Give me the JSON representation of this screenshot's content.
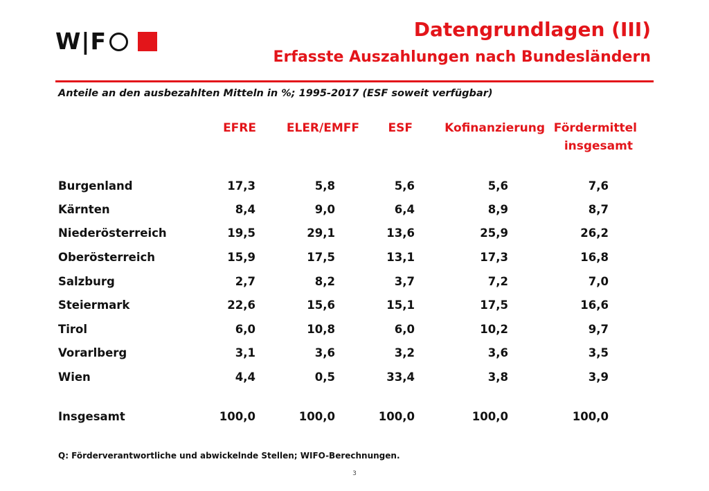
{
  "logo": {
    "text": "W|F"
  },
  "header": {
    "title": "Datengrundlagen (III)",
    "subtitle": "Erfasste Auszahlungen nach Bundesländern"
  },
  "caption": "Anteile an den ausbezahlten Mitteln in %; 1995-2017 (ESF soweit verfügbar)",
  "table": {
    "columns": [
      "EFRE",
      "ELER/EMFF",
      "ESF",
      "Kofinanzierung",
      "Fördermittel",
      "insgesamt"
    ],
    "rows": [
      {
        "label": "Burgenland",
        "values": [
          "17,3",
          "5,8",
          "5,6",
          "5,6",
          "7,6"
        ]
      },
      {
        "label": "Kärnten",
        "values": [
          "8,4",
          "9,0",
          "6,4",
          "8,9",
          "8,7"
        ]
      },
      {
        "label": "Niederösterreich",
        "values": [
          "19,5",
          "29,1",
          "13,6",
          "25,9",
          "26,2"
        ]
      },
      {
        "label": "Oberösterreich",
        "values": [
          "15,9",
          "17,5",
          "13,1",
          "17,3",
          "16,8"
        ]
      },
      {
        "label": "Salzburg",
        "values": [
          "2,7",
          "8,2",
          "3,7",
          "7,2",
          "7,0"
        ]
      },
      {
        "label": "Steiermark",
        "values": [
          "22,6",
          "15,6",
          "15,1",
          "17,5",
          "16,6"
        ]
      },
      {
        "label": "Tirol",
        "values": [
          "6,0",
          "10,8",
          "6,0",
          "10,2",
          "9,7"
        ]
      },
      {
        "label": "Vorarlberg",
        "values": [
          "3,1",
          "3,6",
          "3,2",
          "3,6",
          "3,5"
        ]
      },
      {
        "label": "Wien",
        "values": [
          "4,4",
          "0,5",
          "33,4",
          "3,8",
          "3,9"
        ]
      }
    ],
    "total": {
      "label": "Insgesamt",
      "values": [
        "100,0",
        "100,0",
        "100,0",
        "100,0",
        "100,0"
      ]
    }
  },
  "source": "Q: Förderverantwortliche und abwickelnde Stellen; WIFO-Berechnungen.",
  "page_number": "3",
  "colors": {
    "accent": "#e3151a",
    "text": "#111111"
  }
}
